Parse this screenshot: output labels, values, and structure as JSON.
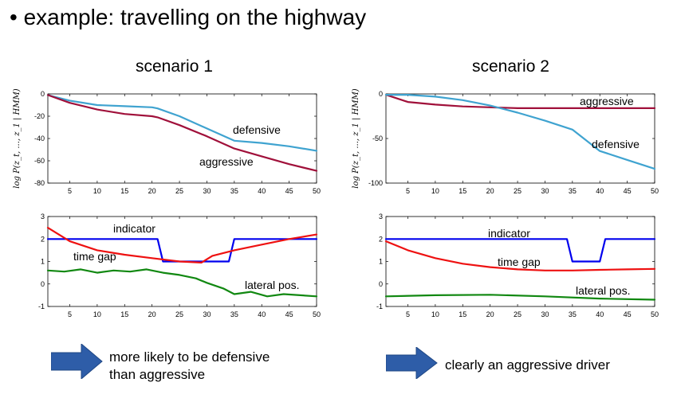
{
  "slide": {
    "title": "• example: travelling on the highway",
    "scenario1": "scenario 1",
    "scenario2": "scenario 2",
    "conclusion1_line1": "more likely to be defensive",
    "conclusion1_line2": "than aggressive",
    "conclusion2": "clearly an aggressive driver"
  },
  "colors": {
    "defensive": "#3fa3d0",
    "aggressive": "#a0103a",
    "indicator": "#0000ee",
    "time_gap": "#ee1111",
    "lateral": "#118811",
    "arrow": "#2e5da8"
  },
  "chart_data": [
    {
      "type": "line",
      "id": "s1_loglik",
      "ylabel": "log P(z_t, ..., z_1 | HMM)",
      "xlim": [
        1,
        50
      ],
      "ylim": [
        -80,
        0
      ],
      "xticks": [
        5,
        10,
        15,
        20,
        25,
        30,
        35,
        40,
        45,
        50
      ],
      "yticks": [
        0,
        -20,
        -40,
        -60,
        -80
      ],
      "series": [
        {
          "name": "defensive",
          "color_key": "defensive",
          "x": [
            1,
            5,
            10,
            15,
            20,
            21,
            25,
            30,
            35,
            40,
            45,
            50
          ],
          "y": [
            -1,
            -6,
            -10,
            -11,
            -12,
            -13,
            -20,
            -31,
            -42,
            -44,
            -47,
            -51
          ]
        },
        {
          "name": "aggressive",
          "color_key": "aggressive",
          "x": [
            1,
            5,
            10,
            15,
            20,
            21,
            25,
            30,
            35,
            40,
            45,
            50
          ],
          "y": [
            -1,
            -8,
            -14,
            -18,
            -20,
            -21,
            -28,
            -38,
            -49,
            -56,
            -63,
            -69
          ]
        }
      ]
    },
    {
      "type": "line",
      "id": "s1_features",
      "xlim": [
        1,
        50
      ],
      "ylim": [
        -1,
        3
      ],
      "xticks": [
        5,
        10,
        15,
        20,
        25,
        30,
        35,
        40,
        45,
        50
      ],
      "yticks": [
        3,
        2,
        1,
        0,
        -1
      ],
      "series": [
        {
          "name": "indicator",
          "color_key": "indicator",
          "x": [
            1,
            21,
            22,
            34,
            35,
            50
          ],
          "y": [
            2,
            2,
            1,
            1,
            2,
            2
          ]
        },
        {
          "name": "time gap",
          "color_key": "time_gap",
          "x": [
            1,
            5,
            10,
            15,
            20,
            25,
            29,
            31,
            35,
            40,
            45,
            50
          ],
          "y": [
            2.5,
            1.9,
            1.5,
            1.3,
            1.15,
            1.0,
            0.95,
            1.25,
            1.5,
            1.75,
            2.0,
            2.2
          ]
        },
        {
          "name": "lateral pos.",
          "color_key": "lateral",
          "x": [
            1,
            4,
            7,
            10,
            13,
            16,
            19,
            22,
            25,
            28,
            30,
            33,
            35,
            38,
            41,
            44,
            47,
            50
          ],
          "y": [
            0.6,
            0.55,
            0.65,
            0.5,
            0.6,
            0.55,
            0.65,
            0.5,
            0.4,
            0.25,
            0.05,
            -0.2,
            -0.45,
            -0.35,
            -0.55,
            -0.45,
            -0.5,
            -0.55
          ]
        }
      ]
    },
    {
      "type": "line",
      "id": "s2_loglik",
      "ylabel": "log P(z_t, ..., z_1 | HMM)",
      "xlim": [
        1,
        50
      ],
      "ylim": [
        -100,
        0
      ],
      "xticks": [
        5,
        10,
        15,
        20,
        25,
        30,
        35,
        40,
        45,
        50
      ],
      "yticks": [
        0,
        -50,
        -100
      ],
      "series": [
        {
          "name": "aggressive",
          "color_key": "aggressive",
          "x": [
            1,
            5,
            10,
            15,
            20,
            25,
            30,
            35,
            40,
            45,
            50
          ],
          "y": [
            -1,
            -9,
            -12,
            -14,
            -15,
            -16,
            -16,
            -16,
            -16,
            -16,
            -16
          ]
        },
        {
          "name": "defensive",
          "color_key": "defensive",
          "x": [
            1,
            5,
            10,
            15,
            20,
            25,
            30,
            35,
            40,
            45,
            50
          ],
          "y": [
            -1,
            -1,
            -3,
            -7,
            -13,
            -21,
            -30,
            -40,
            -64,
            -74,
            -84
          ]
        }
      ]
    },
    {
      "type": "line",
      "id": "s2_features",
      "xlim": [
        1,
        50
      ],
      "ylim": [
        -1,
        3
      ],
      "xticks": [
        5,
        10,
        15,
        20,
        25,
        30,
        35,
        40,
        45,
        50
      ],
      "yticks": [
        3,
        2,
        1,
        0,
        -1
      ],
      "series": [
        {
          "name": "indicator",
          "color_key": "indicator",
          "x": [
            1,
            34,
            35,
            40,
            41,
            50
          ],
          "y": [
            2,
            2,
            1,
            1,
            2,
            2
          ]
        },
        {
          "name": "time gap",
          "color_key": "time_gap",
          "x": [
            1,
            5,
            10,
            15,
            20,
            25,
            30,
            35,
            40,
            45,
            50
          ],
          "y": [
            1.9,
            1.5,
            1.15,
            0.9,
            0.75,
            0.65,
            0.6,
            0.6,
            0.63,
            0.65,
            0.67
          ]
        },
        {
          "name": "lateral pos.",
          "color_key": "lateral",
          "x": [
            1,
            10,
            20,
            30,
            40,
            50
          ],
          "y": [
            -0.55,
            -0.5,
            -0.48,
            -0.55,
            -0.65,
            -0.7
          ]
        }
      ]
    }
  ],
  "annotations": {
    "s1_defensive": "defensive",
    "s1_aggressive": "aggressive",
    "s1_indicator": "indicator",
    "s1_time_gap": "time gap",
    "s1_lateral": "lateral pos.",
    "s2_aggressive": "aggressive",
    "s2_defensive": "defensive",
    "s2_indicator": "indicator",
    "s2_time_gap": "time gap",
    "s2_lateral": "lateral pos."
  }
}
